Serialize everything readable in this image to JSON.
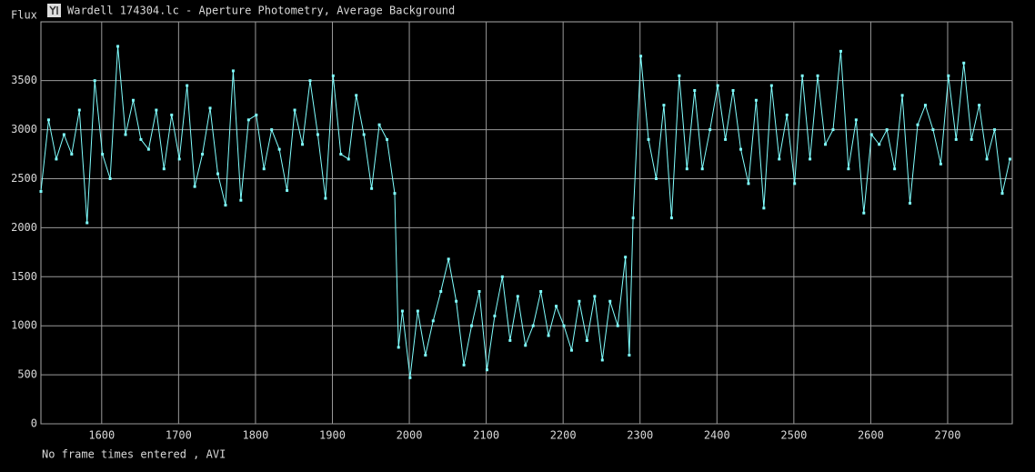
{
  "chart_data": {
    "type": "line",
    "title": "Wardell 174304.lc - Aperture Photometry, Average Background",
    "y_label": "Flux",
    "footer": "No frame times entered , AVI",
    "xlim": [
      1521,
      2784
    ],
    "ylim": [
      0,
      4100
    ],
    "xticks": [
      1600,
      1700,
      1800,
      1900,
      2000,
      2100,
      2200,
      2300,
      2400,
      2500,
      2600,
      2700
    ],
    "yticks": [
      0,
      500,
      1000,
      1500,
      2000,
      2500,
      3000,
      3500
    ],
    "grid": true,
    "series": [
      {
        "color": "#80ffff",
        "x": [
          1521,
          1531,
          1541,
          1551,
          1561,
          1571,
          1581,
          1591,
          1601,
          1611,
          1621,
          1631,
          1641,
          1651,
          1661,
          1671,
          1681,
          1691,
          1701,
          1711,
          1721,
          1731,
          1741,
          1751,
          1761,
          1771,
          1781,
          1791,
          1801,
          1811,
          1821,
          1831,
          1841,
          1851,
          1861,
          1871,
          1881,
          1891,
          1901,
          1911,
          1921,
          1931,
          1941,
          1951,
          1961,
          1971,
          1981,
          1986,
          1991,
          2001,
          2011,
          2021,
          2031,
          2041,
          2051,
          2061,
          2071,
          2081,
          2091,
          2101,
          2111,
          2121,
          2131,
          2141,
          2151,
          2161,
          2171,
          2181,
          2191,
          2201,
          2211,
          2221,
          2231,
          2241,
          2251,
          2261,
          2271,
          2281,
          2286,
          2291,
          2301,
          2311,
          2321,
          2331,
          2341,
          2351,
          2361,
          2371,
          2381,
          2391,
          2401,
          2411,
          2421,
          2431,
          2441,
          2451,
          2461,
          2471,
          2481,
          2491,
          2501,
          2511,
          2521,
          2531,
          2541,
          2551,
          2561,
          2571,
          2581,
          2591,
          2601,
          2611,
          2621,
          2631,
          2641,
          2651,
          2661,
          2671,
          2681,
          2691,
          2701,
          2711,
          2721,
          2731,
          2741,
          2751,
          2761,
          2771,
          2781
        ],
        "values": [
          2370,
          3100,
          2700,
          2950,
          2750,
          3200,
          2050,
          3500,
          2750,
          2500,
          3850,
          2950,
          3300,
          2900,
          2800,
          3200,
          2600,
          3150,
          2700,
          3450,
          2420,
          2750,
          3220,
          2550,
          2230,
          3600,
          2280,
          3100,
          3150,
          2600,
          3000,
          2800,
          2380,
          3200,
          2850,
          3500,
          2950,
          2300,
          3550,
          2750,
          2700,
          3350,
          2950,
          2400,
          3050,
          2900,
          2350,
          780,
          1150,
          470,
          1150,
          700,
          1050,
          1350,
          1680,
          1250,
          600,
          1000,
          1350,
          550,
          1100,
          1500,
          850,
          1300,
          800,
          1000,
          1350,
          900,
          1200,
          1000,
          750,
          1250,
          850,
          1300,
          650,
          1250,
          1000,
          1700,
          700,
          2100,
          3750,
          2900,
          2500,
          3250,
          2100,
          3550,
          2600,
          3400,
          2600,
          3000,
          3450,
          2900,
          3400,
          2800,
          2450,
          3300,
          2200,
          3450,
          2700,
          3150,
          2450,
          3550,
          2700,
          3550,
          2850,
          3000,
          3800,
          2600,
          3100,
          2150,
          2950,
          2850,
          3000,
          2600,
          3350,
          2250,
          3050,
          3250,
          3000,
          2650,
          3550,
          2900,
          3680,
          2900,
          3250,
          2700,
          3000,
          2350,
          2700
        ]
      }
    ]
  }
}
